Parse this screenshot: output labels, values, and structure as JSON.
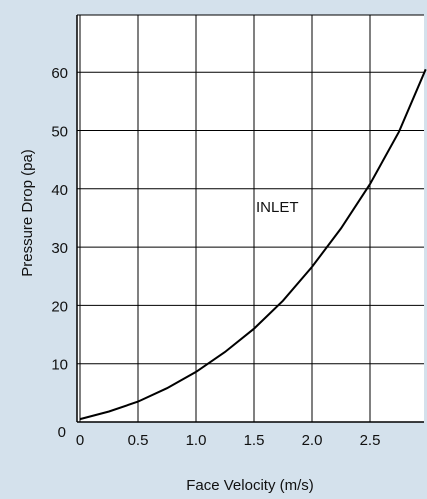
{
  "chart_data": {
    "type": "line",
    "xlabel": "Face Velocity (m/s)",
    "ylabel": "Pressure Drop (pa)",
    "xlim": [
      0,
      3.0
    ],
    "ylim": [
      0,
      70
    ],
    "x_ticks": [
      0,
      0.5,
      1.0,
      1.5,
      2.0,
      2.5
    ],
    "x_tick_labels": [
      "0",
      "0.5",
      "1.0",
      "1.5",
      "2.0",
      "2.5"
    ],
    "y_ticks": [
      0,
      10,
      20,
      30,
      40,
      50,
      60
    ],
    "y_tick_labels": [
      "0",
      "10",
      "20",
      "30",
      "40",
      "50",
      "60"
    ],
    "grid": true,
    "annotation": {
      "text": "INLET",
      "x": 1.5,
      "y": 36
    },
    "series": [
      {
        "x": [
          0,
          0.25,
          0.5,
          0.75,
          1.0,
          1.25,
          1.5,
          1.75,
          2.0,
          2.25,
          2.5,
          2.75,
          2.98
        ],
        "y": [
          0.5,
          1.8,
          3.5,
          5.8,
          8.6,
          12.0,
          16.0,
          20.8,
          26.6,
          33.2,
          40.8,
          49.8,
          60.5
        ]
      }
    ],
    "colors": {
      "background": "#d4e1ec",
      "plot_bg": "#ffffff",
      "line": "#000000",
      "grid": "#000000"
    }
  }
}
